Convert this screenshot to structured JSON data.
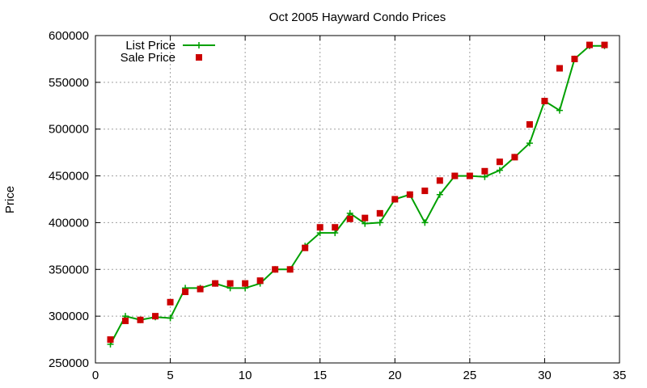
{
  "chart_data": {
    "type": "line",
    "title": "Oct 2005 Hayward Condo Prices",
    "xlabel": "",
    "ylabel": "Price",
    "xlim": [
      0,
      35
    ],
    "ylim": [
      250000,
      600000
    ],
    "xticks": [
      0,
      5,
      10,
      15,
      20,
      25,
      30,
      35
    ],
    "yticks": [
      250000,
      300000,
      350000,
      400000,
      450000,
      500000,
      550000,
      600000
    ],
    "grid": true,
    "legend_position": "top-left",
    "series": [
      {
        "name": "List Price",
        "style": "line with plus markers",
        "color": "#00a000",
        "x": [
          1,
          2,
          3,
          4,
          5,
          6,
          7,
          8,
          9,
          10,
          11,
          12,
          13,
          14,
          15,
          16,
          17,
          18,
          19,
          20,
          21,
          22,
          23,
          24,
          25,
          26,
          27,
          28,
          29,
          30,
          31,
          32,
          33,
          34
        ],
        "y": [
          270000,
          300000,
          296000,
          299000,
          298000,
          330000,
          330000,
          335000,
          330000,
          330000,
          335000,
          350000,
          350000,
          375000,
          389000,
          389000,
          410000,
          399000,
          400000,
          425000,
          430000,
          400000,
          430000,
          450000,
          450000,
          449000,
          456000,
          470000,
          485000,
          530000,
          520000,
          575000,
          589000,
          589000
        ]
      },
      {
        "name": "Sale Price",
        "style": "square markers",
        "color": "#cc0000",
        "x": [
          1,
          2,
          3,
          4,
          5,
          6,
          7,
          8,
          9,
          10,
          11,
          12,
          13,
          14,
          15,
          16,
          17,
          18,
          19,
          20,
          21,
          22,
          23,
          24,
          25,
          26,
          27,
          28,
          29,
          30,
          31,
          32,
          33,
          34
        ],
        "y": [
          275000,
          295000,
          296000,
          300000,
          315000,
          326000,
          329000,
          335000,
          335000,
          335000,
          338000,
          350000,
          350000,
          373000,
          395000,
          395000,
          404000,
          405000,
          410000,
          425000,
          430000,
          434000,
          445000,
          450000,
          450000,
          455000,
          465000,
          470000,
          505000,
          530000,
          565000,
          575000,
          590000,
          590000
        ]
      }
    ]
  }
}
